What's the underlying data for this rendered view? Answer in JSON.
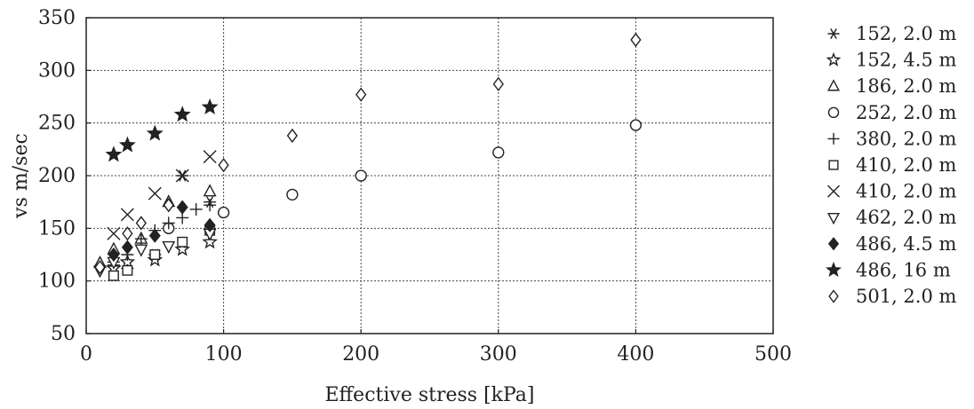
{
  "chart_data": {
    "type": "scatter",
    "xlabel": "Effective stress  [kPa]",
    "ylabel": "vs m/sec",
    "xlim": [
      0,
      500
    ],
    "ylim": [
      50,
      350
    ],
    "xticks": [
      0,
      100,
      200,
      300,
      400,
      500
    ],
    "yticks": [
      50,
      100,
      150,
      200,
      250,
      300,
      350
    ],
    "grid": true,
    "legend_position": "right",
    "series": [
      {
        "name": "152, 2.0 m",
        "marker": "asterisk",
        "points": [
          [
            20,
            115
          ],
          [
            30,
            112
          ],
          [
            50,
            125
          ],
          [
            70,
            200
          ],
          [
            90,
            175
          ]
        ]
      },
      {
        "name": "152, 4.5 m",
        "marker": "star-open",
        "points": [
          [
            20,
            112
          ],
          [
            30,
            118
          ],
          [
            50,
            120
          ],
          [
            70,
            130
          ],
          [
            90,
            137
          ]
        ]
      },
      {
        "name": "186, 2.0 m",
        "marker": "triangle-up",
        "points": [
          [
            10,
            117
          ],
          [
            20,
            130
          ],
          [
            40,
            140
          ],
          [
            60,
            175
          ],
          [
            90,
            185
          ]
        ]
      },
      {
        "name": "252, 2.0 m",
        "marker": "circle",
        "points": [
          [
            60,
            150
          ],
          [
            100,
            165
          ],
          [
            150,
            182
          ],
          [
            200,
            200
          ],
          [
            300,
            222
          ],
          [
            400,
            248
          ]
        ]
      },
      {
        "name": "380, 2.0 m",
        "marker": "plus",
        "points": [
          [
            20,
            118
          ],
          [
            30,
            125
          ],
          [
            40,
            140
          ],
          [
            50,
            148
          ],
          [
            60,
            155
          ],
          [
            70,
            160
          ],
          [
            80,
            168
          ],
          [
            90,
            172
          ]
        ]
      },
      {
        "name": "410, 2.0 m",
        "marker": "square",
        "points": [
          [
            20,
            105
          ],
          [
            30,
            110
          ],
          [
            50,
            125
          ],
          [
            70,
            137
          ],
          [
            90,
            148
          ]
        ]
      },
      {
        "name": "410, 2.0 m",
        "marker": "x",
        "points": [
          [
            20,
            145
          ],
          [
            30,
            163
          ],
          [
            50,
            183
          ],
          [
            70,
            200
          ],
          [
            90,
            218
          ]
        ]
      },
      {
        "name": "462, 2.0 m",
        "marker": "triangle-down",
        "points": [
          [
            10,
            110
          ],
          [
            20,
            118
          ],
          [
            40,
            130
          ],
          [
            60,
            133
          ],
          [
            90,
            145
          ]
        ]
      },
      {
        "name": "486, 4.5 m",
        "marker": "diamond-filled",
        "points": [
          [
            20,
            125
          ],
          [
            30,
            132
          ],
          [
            50,
            143
          ],
          [
            70,
            170
          ],
          [
            90,
            153
          ]
        ]
      },
      {
        "name": "486, 16  m",
        "marker": "star-filled",
        "points": [
          [
            20,
            220
          ],
          [
            30,
            229
          ],
          [
            50,
            240
          ],
          [
            70,
            258
          ],
          [
            90,
            265
          ]
        ]
      },
      {
        "name": "501, 2.0 m",
        "marker": "diamond-open",
        "points": [
          [
            10,
            113
          ],
          [
            30,
            145
          ],
          [
            40,
            155
          ],
          [
            60,
            172
          ],
          [
            100,
            210
          ],
          [
            150,
            238
          ],
          [
            200,
            277
          ],
          [
            300,
            287
          ],
          [
            400,
            329
          ]
        ]
      }
    ]
  }
}
